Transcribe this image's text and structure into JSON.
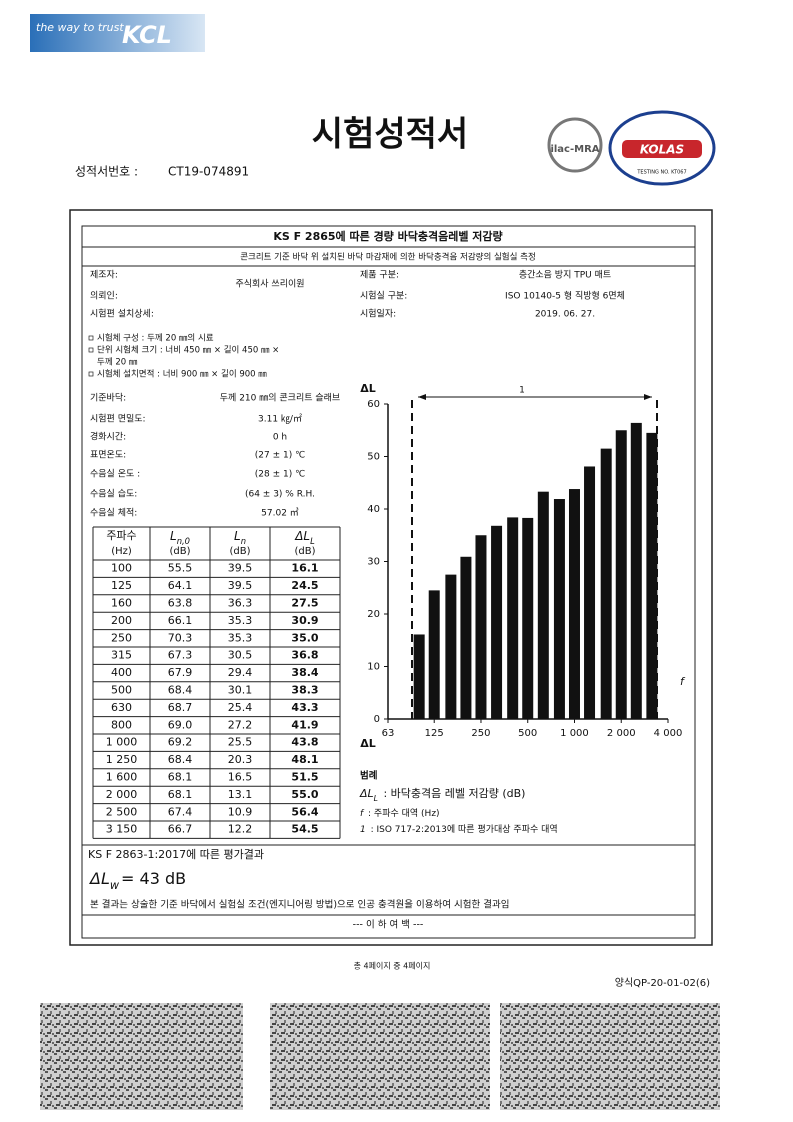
{
  "header": {
    "brand_tagline": "the way to trust",
    "brand": "KCL",
    "title": "시험성적서",
    "report_no_label": "성적서번호 :",
    "report_no": "CT19-074891",
    "logo_ilac": "ilac-MRA",
    "logo_kolas": "KOLAS",
    "kolas_no": "TESTING NO. KT067"
  },
  "form": {
    "title": "KS F 2865에 따른 경량 바닥충격음레벨 저감량",
    "subtitle": "콘크리트 기준 바닥 위 설치된 바닥 마감재에 의한 바닥충격음 저감량의 실험실 측정"
  },
  "info_left": [
    {
      "label": "제조자:",
      "value": "주식회사 쓰리이원"
    },
    {
      "label": "의뢰인:"
    }
  ],
  "installation": {
    "label": "시험편 설치상세:",
    "items": [
      [
        "시험체 구성 : 두께 20 ㎜의 시료"
      ],
      [
        "단위 시험체 크기 : 너비 450 ㎜ × 길이 450 ㎜ ×",
        "두께 20 ㎜"
      ],
      [
        "시험체 설치면적 : 너비 900 ㎜ × 길이  900 ㎜"
      ]
    ]
  },
  "conditions": [
    {
      "label": "기준바닥:",
      "value": "두께 210 ㎜의 콘크리트 슬래브"
    },
    {
      "label": "시험편 면밀도:",
      "value": "3.11 ㎏/㎡"
    },
    {
      "label": "경화시간:",
      "value": "0 h"
    },
    {
      "label": "표면온도:",
      "value": "(27 ± 1) ℃"
    },
    {
      "label": "수음실 온도 :",
      "value": "(28 ± 1) ℃"
    },
    {
      "label": "수음실 습도:",
      "value": "(64 ± 3) % R.H."
    },
    {
      "label": "수음실 체적:",
      "value": "57.02 ㎥"
    }
  ],
  "info_right": [
    {
      "label": "제품 구분:",
      "value": "층간소음 방지 TPU 매트"
    },
    {
      "label": "시험실 구분:",
      "value": "ISO 10140-5 형 직방형 6면체"
    },
    {
      "label": "시험일자:",
      "value": "2019. 06. 27."
    }
  ],
  "table": {
    "header": [
      {
        "text": "주파수",
        "unit": "(Hz)"
      },
      {
        "symbol": "L",
        "sub": "n,0",
        "unit": "(dB)"
      },
      {
        "symbol": "L",
        "sub": "n",
        "unit": "(dB)"
      },
      {
        "symbol": "ΔL",
        "sub": "L",
        "unit": "(dB)"
      }
    ],
    "rows": [
      [
        "100",
        "55.5",
        "39.5",
        "16.1"
      ],
      [
        "125",
        "64.1",
        "39.5",
        "24.5"
      ],
      [
        "160",
        "63.8",
        "36.3",
        "27.5"
      ],
      [
        "200",
        "66.1",
        "35.3",
        "30.9"
      ],
      [
        "250",
        "70.3",
        "35.3",
        "35.0"
      ],
      [
        "315",
        "67.3",
        "30.5",
        "36.8"
      ],
      [
        "400",
        "67.9",
        "29.4",
        "38.4"
      ],
      [
        "500",
        "68.4",
        "30.1",
        "38.3"
      ],
      [
        "630",
        "68.7",
        "25.4",
        "43.3"
      ],
      [
        "800",
        "69.0",
        "27.2",
        "41.9"
      ],
      [
        "1 000",
        "69.2",
        "25.5",
        "43.8"
      ],
      [
        "1 250",
        "68.4",
        "20.3",
        "48.1"
      ],
      [
        "1 600",
        "68.1",
        "16.5",
        "51.5"
      ],
      [
        "2 000",
        "68.1",
        "13.1",
        "55.0"
      ],
      [
        "2 500",
        "67.4",
        "10.9",
        "56.4"
      ],
      [
        "3 150",
        "66.7",
        "12.2",
        "54.5"
      ]
    ]
  },
  "chart_data": {
    "type": "bar",
    "y_label": "ΔL",
    "x_label": "f",
    "annotation": "1",
    "color": "#111111",
    "x": [
      100,
      125,
      160,
      200,
      250,
      315,
      400,
      500,
      630,
      800,
      1000,
      1250,
      1600,
      2000,
      2500,
      3150
    ],
    "values": [
      16.1,
      24.5,
      27.5,
      30.9,
      35,
      36.8,
      38.4,
      38.3,
      43.3,
      41.9,
      43.8,
      48.1,
      51.5,
      55,
      56.4,
      54.5
    ],
    "xlim": [
      63,
      4000
    ],
    "xlog": true,
    "xticks": [
      63,
      125,
      250,
      500,
      {
        "value": 1000,
        "label": "1 000"
      },
      {
        "value": 2000,
        "label": "2 000"
      },
      {
        "value": 4000,
        "label": "4 000"
      }
    ],
    "ylim": [
      0,
      60
    ],
    "yticks": [
      0,
      10,
      20,
      30,
      40,
      50,
      60
    ],
    "grid": false
  },
  "legend": {
    "title": "범례",
    "items": [
      {
        "symbol": "ΔL",
        "sub": "L",
        "text": " : 바닥충격음 레벨 저감량 (dB)"
      },
      {
        "symbol": "f",
        "text": " : 주파수 대역 (Hz)"
      },
      {
        "symbol": "1",
        "text": " : ISO 717-2:2013에 따른 평가대상 주파수 대역"
      }
    ]
  },
  "result": {
    "title": "KS F 2863-1:2017에 따른 평가결과",
    "symbol": "ΔL",
    "sub": "w",
    "value": "=  43 dB",
    "note": "본 결과는 상술한 기준 바닥에서 실험실 조건(엔지니어링 방법)으로 인공 충격원을 이용하여 시험한 결과임",
    "end": "--- 이 하 여 백 ---"
  },
  "footer": {
    "pages": "총 4페이지 중 4페이지",
    "form_no": "양식QP-20-01-02(6)"
  }
}
